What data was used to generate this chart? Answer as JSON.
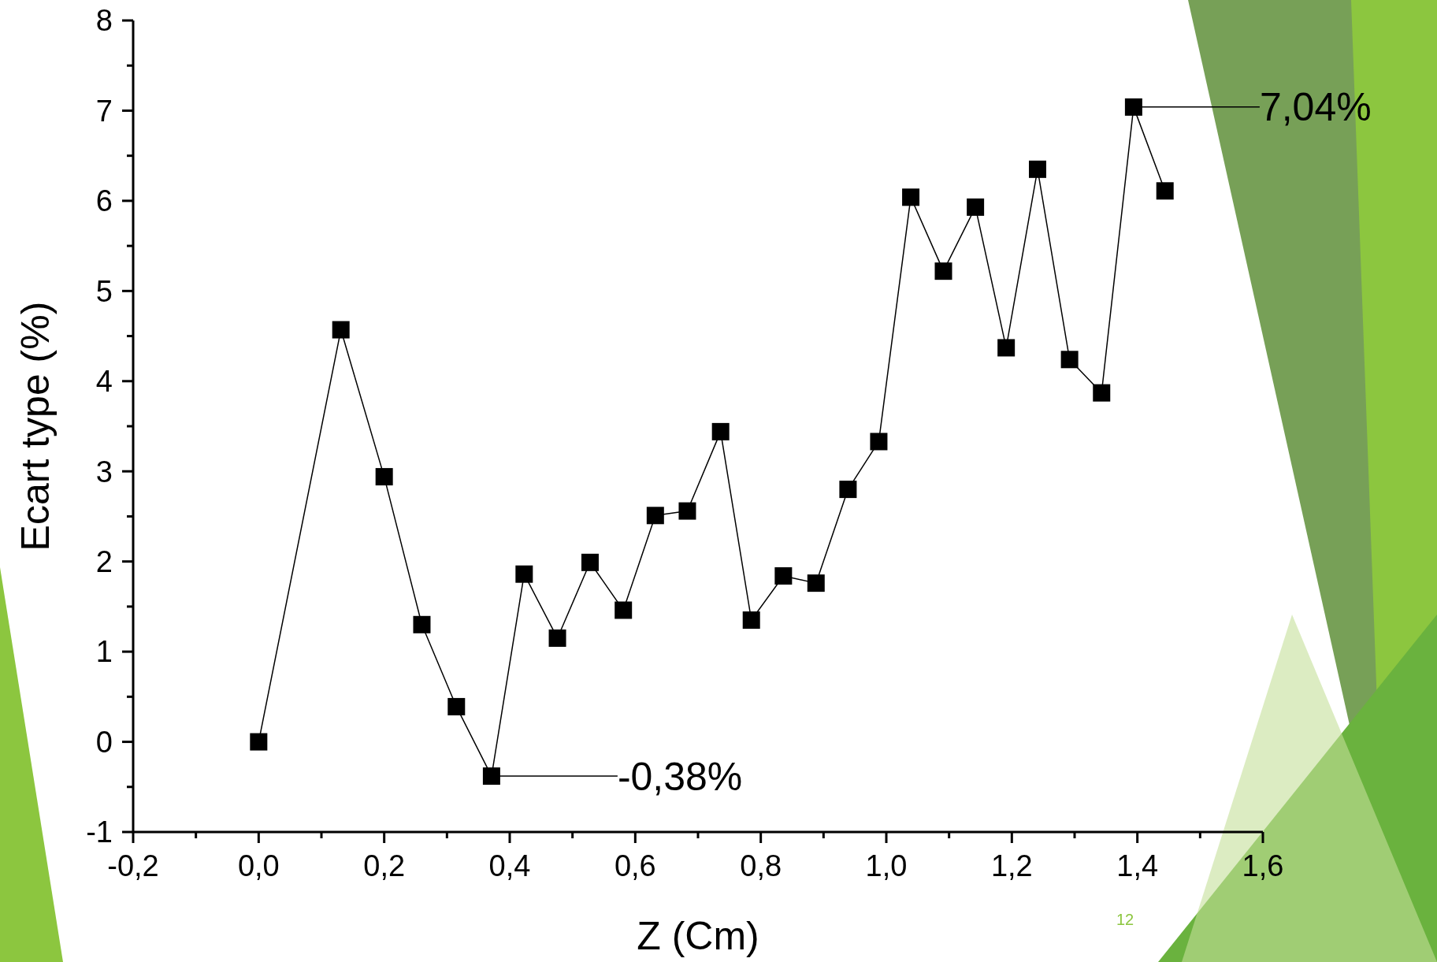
{
  "chart_data": {
    "type": "line",
    "xlabel": "Z (Cm)",
    "ylabel": "Ecart type (%)",
    "x": [
      0,
      0.131,
      0.2,
      0.26,
      0.315,
      0.371,
      0.423,
      0.476,
      0.528,
      0.581,
      0.632,
      0.683,
      0.736,
      0.785,
      0.836,
      0.888,
      0.939,
      0.988,
      1.039,
      1.091,
      1.142,
      1.191,
      1.241,
      1.292,
      1.343,
      1.394,
      1.444
    ],
    "series": [
      {
        "color": "#000000",
        "values": [
          0,
          4.57,
          2.94,
          1.3,
          0.39,
          -0.38,
          1.86,
          1.15,
          1.99,
          1.46,
          2.51,
          2.56,
          3.44,
          1.35,
          1.84,
          1.76,
          2.8,
          3.33,
          6.04,
          5.22,
          5.93,
          4.37,
          6.35,
          4.24,
          3.87,
          7.04,
          6.11
        ]
      }
    ],
    "xlim": [
      -0.2,
      1.6
    ],
    "xticks": [
      {
        "value": -0.2,
        "label": "-0,2"
      },
      {
        "value": -0.1,
        "label": null
      },
      {
        "value": 0,
        "label": "0,0"
      },
      {
        "value": 0.1,
        "label": null
      },
      {
        "value": 0.2,
        "label": "0,2"
      },
      {
        "value": 0.3,
        "label": null
      },
      {
        "value": 0.4,
        "label": "0,4"
      },
      {
        "value": 0.5,
        "label": null
      },
      {
        "value": 0.6,
        "label": "0,6"
      },
      {
        "value": 0.7,
        "label": null
      },
      {
        "value": 0.8,
        "label": "0,8"
      },
      {
        "value": 0.9,
        "label": null
      },
      {
        "value": 1.0,
        "label": "1,0"
      },
      {
        "value": 1.1,
        "label": null
      },
      {
        "value": 1.2,
        "label": "1,2"
      },
      {
        "value": 1.3,
        "label": null
      },
      {
        "value": 1.4,
        "label": "1,4"
      },
      {
        "value": 1.5,
        "label": null
      },
      {
        "value": 1.6,
        "label": "1,6"
      }
    ],
    "ylim": [
      -1,
      8
    ],
    "yticks": [
      -1,
      {
        "value": -0.5,
        "label": null
      },
      0,
      {
        "value": 0.5,
        "label": null
      },
      1,
      {
        "value": 1.5,
        "label": null
      },
      2,
      {
        "value": 2.5,
        "label": null
      },
      3,
      {
        "value": 3.5,
        "label": null
      },
      4,
      {
        "value": 4.5,
        "label": null
      },
      5,
      {
        "value": 5.5,
        "label": null
      },
      6,
      {
        "value": 6.5,
        "label": null
      },
      7,
      {
        "value": 7.5,
        "label": null
      },
      8
    ],
    "marker": "square",
    "line_style": "solid",
    "grid": false,
    "annotations": [
      "7,04%",
      "-0,38%",
      "12"
    ]
  }
}
